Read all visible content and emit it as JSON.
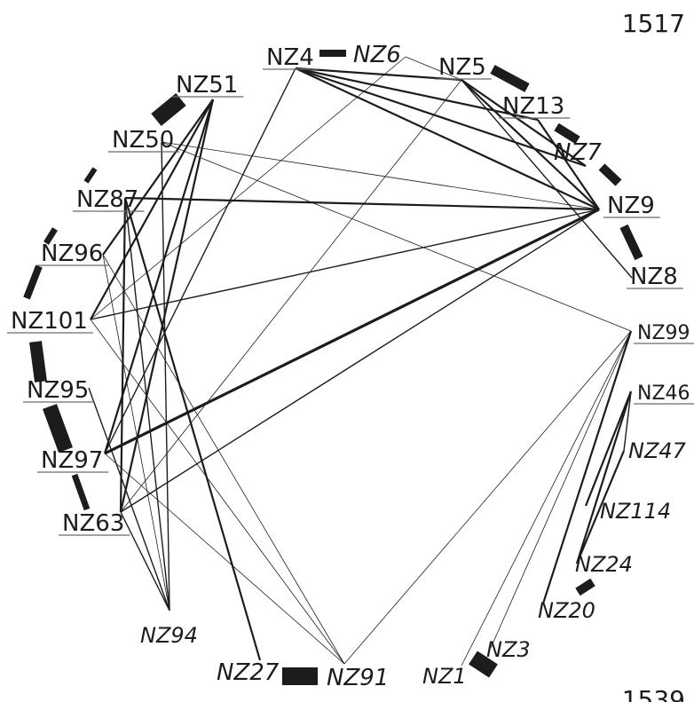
{
  "page_numbers": {
    "top": "1517",
    "bottom": "1539"
  },
  "colors": {
    "ink": "#1c1c1c",
    "page": "#ffffff"
  },
  "network": {
    "nodes": [
      {
        "id": "NZ4",
        "label": "NZ4",
        "style": "upright-underlined"
      },
      {
        "id": "NZ6",
        "label": "NZ6",
        "style": "italic"
      },
      {
        "id": "NZ5",
        "label": "NZ5",
        "style": "upright-underlined"
      },
      {
        "id": "NZ13",
        "label": "NZ13",
        "style": "upright-underlined"
      },
      {
        "id": "NZ7",
        "label": "NZ7",
        "style": "italic"
      },
      {
        "id": "NZ9",
        "label": "NZ9",
        "style": "upright-underlined"
      },
      {
        "id": "NZ8",
        "label": "NZ8",
        "style": "upright-underlined"
      },
      {
        "id": "NZ99",
        "label": "NZ99",
        "style": "upright-underlined"
      },
      {
        "id": "NZ46",
        "label": "NZ46",
        "style": "upright-underlined"
      },
      {
        "id": "NZ47",
        "label": "NZ47",
        "style": "italic"
      },
      {
        "id": "NZ114",
        "label": "NZ114",
        "style": "italic"
      },
      {
        "id": "NZ24",
        "label": "NZ24",
        "style": "italic"
      },
      {
        "id": "NZ20",
        "label": "NZ20",
        "style": "italic"
      },
      {
        "id": "NZ3",
        "label": "NZ3",
        "style": "italic"
      },
      {
        "id": "NZ1",
        "label": "NZ1",
        "style": "italic"
      },
      {
        "id": "NZ91",
        "label": "NZ91",
        "style": "italic"
      },
      {
        "id": "NZ27",
        "label": "NZ27",
        "style": "italic"
      },
      {
        "id": "NZ94",
        "label": "NZ94",
        "style": "italic"
      },
      {
        "id": "NZ63",
        "label": "NZ63",
        "style": "upright-underlined"
      },
      {
        "id": "NZ97",
        "label": "NZ97",
        "style": "upright-underlined"
      },
      {
        "id": "NZ95",
        "label": "NZ95",
        "style": "upright-underlined"
      },
      {
        "id": "NZ101",
        "label": "NZ101",
        "style": "upright-underlined"
      },
      {
        "id": "NZ96",
        "label": "NZ96",
        "style": "upright-underlined"
      },
      {
        "id": "NZ87",
        "label": "NZ87",
        "style": "upright-underlined"
      },
      {
        "id": "NZ50",
        "label": "NZ50",
        "style": "upright-underlined"
      },
      {
        "id": "NZ51",
        "label": "NZ51",
        "style": "upright-underlined"
      }
    ],
    "edges": [
      {
        "from": "NZ4",
        "to": "NZ6",
        "weight": "heavy"
      },
      {
        "from": "NZ6",
        "to": "NZ5",
        "weight": "thin"
      },
      {
        "from": "NZ5",
        "to": "NZ13",
        "weight": "heavy"
      },
      {
        "from": "NZ13",
        "to": "NZ7",
        "weight": "heavy"
      },
      {
        "from": "NZ7",
        "to": "NZ9",
        "weight": "heavy"
      },
      {
        "from": "NZ9",
        "to": "NZ8",
        "weight": "heavy"
      },
      {
        "from": "NZ24",
        "to": "NZ20",
        "weight": "heavy"
      },
      {
        "from": "NZ1",
        "to": "NZ3",
        "weight": "heavy"
      },
      {
        "from": "NZ27",
        "to": "NZ91",
        "weight": "heavy"
      },
      {
        "from": "NZ97",
        "to": "NZ63",
        "weight": "heavy"
      },
      {
        "from": "NZ95",
        "to": "NZ97",
        "weight": "heavy"
      },
      {
        "from": "NZ101",
        "to": "NZ95",
        "weight": "heavy"
      },
      {
        "from": "NZ96",
        "to": "NZ101",
        "weight": "heavy"
      },
      {
        "from": "NZ87",
        "to": "NZ96",
        "weight": "heavy"
      },
      {
        "from": "NZ50",
        "to": "NZ87",
        "weight": "heavy"
      },
      {
        "from": "NZ51",
        "to": "NZ50",
        "weight": "heavy"
      },
      {
        "from": "NZ4",
        "to": "NZ5",
        "weight": "medium"
      },
      {
        "from": "NZ4",
        "to": "NZ13",
        "weight": "medium"
      },
      {
        "from": "NZ4",
        "to": "NZ7",
        "weight": "medium"
      },
      {
        "from": "NZ4",
        "to": "NZ9",
        "weight": "medium"
      },
      {
        "from": "NZ4",
        "to": "NZ97",
        "weight": "light"
      },
      {
        "from": "NZ5",
        "to": "NZ9",
        "weight": "medium"
      },
      {
        "from": "NZ5",
        "to": "NZ7",
        "weight": "medium"
      },
      {
        "from": "NZ5",
        "to": "NZ8",
        "weight": "light"
      },
      {
        "from": "NZ5",
        "to": "NZ63",
        "weight": "thin"
      },
      {
        "from": "NZ6",
        "to": "NZ101",
        "weight": "thin"
      },
      {
        "from": "NZ13",
        "to": "NZ9",
        "weight": "medium"
      },
      {
        "from": "NZ9",
        "to": "NZ87",
        "weight": "medium"
      },
      {
        "from": "NZ9",
        "to": "NZ97",
        "weight": "heavy"
      },
      {
        "from": "NZ9",
        "to": "NZ63",
        "weight": "light"
      },
      {
        "from": "NZ9",
        "to": "NZ50",
        "weight": "thin"
      },
      {
        "from": "NZ9",
        "to": "NZ101",
        "weight": "light"
      },
      {
        "from": "NZ99",
        "to": "NZ1",
        "weight": "thin"
      },
      {
        "from": "NZ99",
        "to": "NZ3",
        "weight": "thin"
      },
      {
        "from": "NZ99",
        "to": "NZ20",
        "weight": "medium"
      },
      {
        "from": "NZ99",
        "to": "NZ91",
        "weight": "thin"
      },
      {
        "from": "NZ99",
        "to": "NZ50",
        "weight": "thin"
      },
      {
        "from": "NZ46",
        "to": "NZ24",
        "weight": "medium"
      },
      {
        "from": "NZ46",
        "to": "NZ114",
        "weight": "medium"
      },
      {
        "from": "NZ46",
        "to": "NZ47",
        "weight": "light"
      },
      {
        "from": "NZ47",
        "to": "NZ24",
        "weight": "medium"
      },
      {
        "from": "NZ51",
        "to": "NZ101",
        "weight": "medium"
      },
      {
        "from": "NZ51",
        "to": "NZ63",
        "weight": "medium"
      },
      {
        "from": "NZ51",
        "to": "NZ97",
        "weight": "medium"
      },
      {
        "from": "NZ51",
        "to": "NZ96",
        "weight": "medium"
      },
      {
        "from": "NZ50",
        "to": "NZ94",
        "weight": "light"
      },
      {
        "from": "NZ87",
        "to": "NZ63",
        "weight": "medium"
      },
      {
        "from": "NZ87",
        "to": "NZ27",
        "weight": "medium"
      },
      {
        "from": "NZ87",
        "to": "NZ94",
        "weight": "light"
      },
      {
        "from": "NZ96",
        "to": "NZ91",
        "weight": "thin"
      },
      {
        "from": "NZ96",
        "to": "NZ94",
        "weight": "thin"
      },
      {
        "from": "NZ101",
        "to": "NZ91",
        "weight": "thin"
      },
      {
        "from": "NZ95",
        "to": "NZ94",
        "weight": "light"
      },
      {
        "from": "NZ97",
        "to": "NZ91",
        "weight": "thin"
      },
      {
        "from": "NZ63",
        "to": "NZ94",
        "weight": "light"
      }
    ]
  }
}
